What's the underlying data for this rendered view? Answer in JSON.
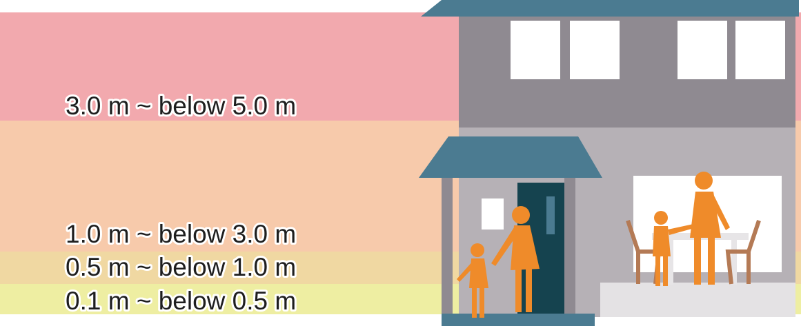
{
  "bands": [
    {
      "label": "3.0 m ~ below 5.0 m"
    },
    {
      "label": "1.0 m ~ below 3.0 m"
    },
    {
      "label": "0.5 m ~ below 1.0 m"
    },
    {
      "label": "0.1 m ~ below 0.5 m"
    }
  ]
}
